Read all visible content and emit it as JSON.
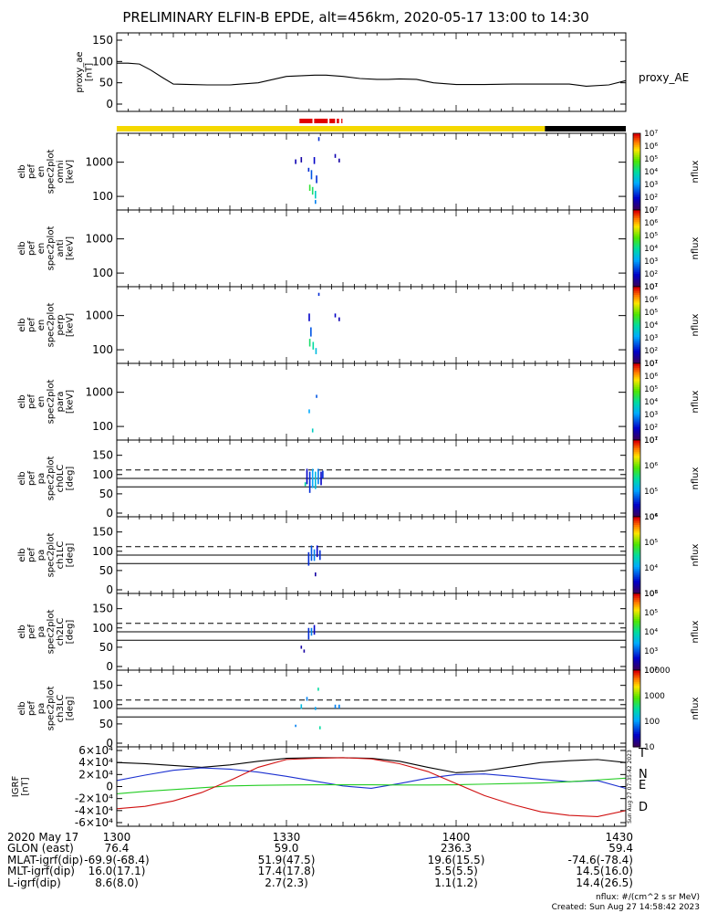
{
  "title": "PRELIMINARY ELFIN-B EPDE, alt=456km, 2020-05-17 13:00 to 14:30",
  "colors": {
    "axis": "#000000",
    "bar_yellow": "#f5d800",
    "bar_black": "#000000",
    "bar_red": "#e00000",
    "igrf_T": "#000000",
    "igrf_N": "#1a2fd0",
    "igrf_E": "#22cc22",
    "igrf_D": "#d01010"
  },
  "chart_data": [
    {
      "type": "line",
      "id": "proxy_ae",
      "ylabel": "proxy_ae\n[nT]",
      "series_label": "proxy_AE",
      "yticks": [
        "0",
        "50",
        "100",
        "150"
      ],
      "ylim": [
        0,
        150
      ],
      "x": [
        0,
        2,
        4,
        6,
        8,
        10,
        13,
        16,
        20,
        25,
        30,
        35,
        37,
        40,
        43,
        46,
        48,
        50,
        53,
        56,
        60,
        65,
        70,
        75,
        80,
        83,
        87,
        90
      ],
      "values": [
        96,
        96,
        94,
        80,
        63,
        47,
        46,
        45,
        45,
        50,
        65,
        68,
        68,
        65,
        60,
        58,
        58,
        59,
        58,
        50,
        46,
        46,
        47,
        47,
        47,
        42,
        45,
        55
      ]
    },
    {
      "type": "heatmap",
      "id": "spec_omni",
      "ylabel": "elb\npef\nen\nspec2plot\nomni\n[keV]",
      "yticks": [
        "100",
        "1000"
      ],
      "colorbar_ticks": [
        "10·",
        "10²",
        "10³",
        "10⁴",
        "10⁵",
        "10⁶",
        "10⁷"
      ],
      "colorbar_label": "nflux"
    },
    {
      "type": "heatmap",
      "id": "spec_anti",
      "ylabel": "elb\npef\nen\nspec2plot\nanti\n[keV]",
      "yticks": [
        "100",
        "1000"
      ],
      "colorbar_ticks": [
        "10¹",
        "10²",
        "10³",
        "10⁴",
        "10⁵",
        "10⁶",
        "10⁷"
      ],
      "colorbar_label": "nflux"
    },
    {
      "type": "heatmap",
      "id": "spec_perp",
      "ylabel": "elb\npef\nen\nspec2plot\nperp\n[keV]",
      "yticks": [
        "100",
        "1000"
      ],
      "colorbar_ticks": [
        "10¹",
        "10²",
        "10³",
        "10⁴",
        "10⁵",
        "10⁶",
        "10⁷"
      ],
      "colorbar_label": "nflux"
    },
    {
      "type": "heatmap",
      "id": "spec_para",
      "ylabel": "elb\npef\nen\nspec2plot\npara\n[keV]",
      "yticks": [
        "100",
        "1000"
      ],
      "colorbar_ticks": [
        "10¹",
        "10²",
        "10³",
        "10⁴",
        "10⁵",
        "10⁶",
        "10⁷"
      ],
      "colorbar_label": "nflux"
    },
    {
      "type": "heatmap",
      "id": "pa_ch0",
      "ylabel": "elb\npef\npa\nspec2plot\nch0LC\n[deg]",
      "yticks": [
        "0",
        "50",
        "100",
        "150"
      ],
      "colorbar_ticks": [
        "10⁴",
        "10⁵",
        "10⁶",
        "10⁷"
      ],
      "colorbar_label": "nflux"
    },
    {
      "type": "heatmap",
      "id": "pa_ch1",
      "ylabel": "elb\npef\npa\nspec2plot\nch1LC\n[deg]",
      "yticks": [
        "0",
        "50",
        "100",
        "150"
      ],
      "colorbar_ticks": [
        "10³",
        "10⁴",
        "10⁵",
        "10⁶"
      ],
      "colorbar_label": "nflux"
    },
    {
      "type": "heatmap",
      "id": "pa_ch2",
      "ylabel": "elb\npef\npa\nspec2plot\nch2LC\n[deg]",
      "yticks": [
        "0",
        "50",
        "100",
        "150"
      ],
      "colorbar_ticks": [
        "10²",
        "10³",
        "10⁴",
        "10⁵",
        "10⁶"
      ],
      "colorbar_label": "nflux"
    },
    {
      "type": "heatmap",
      "id": "pa_ch3",
      "ylabel": "elb\npef\npa\nspec2plot\nch3LC\n[deg]",
      "yticks": [
        "0",
        "50",
        "100",
        "150"
      ],
      "colorbar_ticks": [
        "10",
        "100",
        "1000",
        "10000"
      ],
      "colorbar_label": "nflux"
    },
    {
      "type": "line",
      "id": "igrf",
      "ylabel": "IGRF\n[nT]",
      "yticks": [
        "-6×10⁴",
        "-4×10⁴",
        "-2×10⁴",
        "0",
        "2×10⁴",
        "4×10⁴",
        "6×10⁴"
      ],
      "ylim": [
        -60000,
        60000
      ],
      "side_note": "Sun Aug 27 07:35:42 2023",
      "series": [
        {
          "name": "T",
          "x": [
            0,
            5,
            10,
            15,
            20,
            25,
            30,
            35,
            40,
            45,
            50,
            55,
            60,
            65,
            70,
            75,
            80,
            85,
            90
          ],
          "values": [
            40000,
            38000,
            35000,
            32000,
            36000,
            42000,
            47000,
            48000,
            48000,
            47000,
            42000,
            32000,
            23000,
            26000,
            33000,
            40000,
            43000,
            45000,
            40000
          ]
        },
        {
          "name": "N",
          "x": [
            0,
            5,
            10,
            15,
            20,
            25,
            30,
            35,
            40,
            45,
            50,
            55,
            60,
            65,
            70,
            75,
            80,
            85,
            90
          ],
          "values": [
            10000,
            19000,
            27000,
            31000,
            29000,
            24000,
            17000,
            9000,
            1000,
            -3000,
            5000,
            14000,
            20000,
            21000,
            17000,
            12000,
            8000,
            10000,
            -3000
          ]
        },
        {
          "name": "E",
          "x": [
            0,
            5,
            10,
            15,
            20,
            25,
            30,
            35,
            40,
            45,
            50,
            55,
            60,
            65,
            70,
            75,
            80,
            85,
            90
          ],
          "values": [
            -12000,
            -8000,
            -5000,
            -2000,
            1000,
            2000,
            2500,
            3000,
            3000,
            3000,
            2500,
            2500,
            3000,
            4000,
            5000,
            6000,
            8000,
            11000,
            14000
          ]
        },
        {
          "name": "D",
          "x": [
            0,
            5,
            10,
            15,
            20,
            25,
            30,
            35,
            40,
            45,
            50,
            55,
            60,
            65,
            70,
            75,
            80,
            85,
            90
          ],
          "values": [
            -37000,
            -33000,
            -24000,
            -10000,
            10000,
            32000,
            45000,
            47000,
            48000,
            46000,
            38000,
            25000,
            5000,
            -15000,
            -30000,
            -42000,
            -48000,
            -50000,
            -40000
          ]
        }
      ]
    }
  ],
  "time_labels": [
    "1300",
    "1330",
    "1400",
    "1430"
  ],
  "footer_rows": [
    {
      "label": "2020 May 17",
      "values": [
        "1300",
        "1330",
        "1400",
        "1430"
      ]
    },
    {
      "label": "GLON (east)",
      "values": [
        "76.4",
        "59.0",
        "236.3",
        "59.4"
      ]
    },
    {
      "label": "MLAT-igrf(dip)",
      "values": [
        "-69.9(-68.4)",
        "51.9(47.5)",
        "19.6(15.5)",
        "-74.6(-78.4)"
      ]
    },
    {
      "label": "MLT-igrf(dip)",
      "values": [
        "16.0(17.1)",
        "17.4(17.8)",
        "5.5(5.5)",
        "14.5(16.0)"
      ]
    },
    {
      "label": "L-igrf(dip)",
      "values": [
        "8.6(8.0)",
        "2.7(2.3)",
        "1.1(1.2)",
        "14.4(26.5)"
      ]
    }
  ],
  "units_note": "nflux: #/(cm^2 s sr MeV)",
  "created_note": "Created: Sun Aug 27 14:58:42 2023"
}
